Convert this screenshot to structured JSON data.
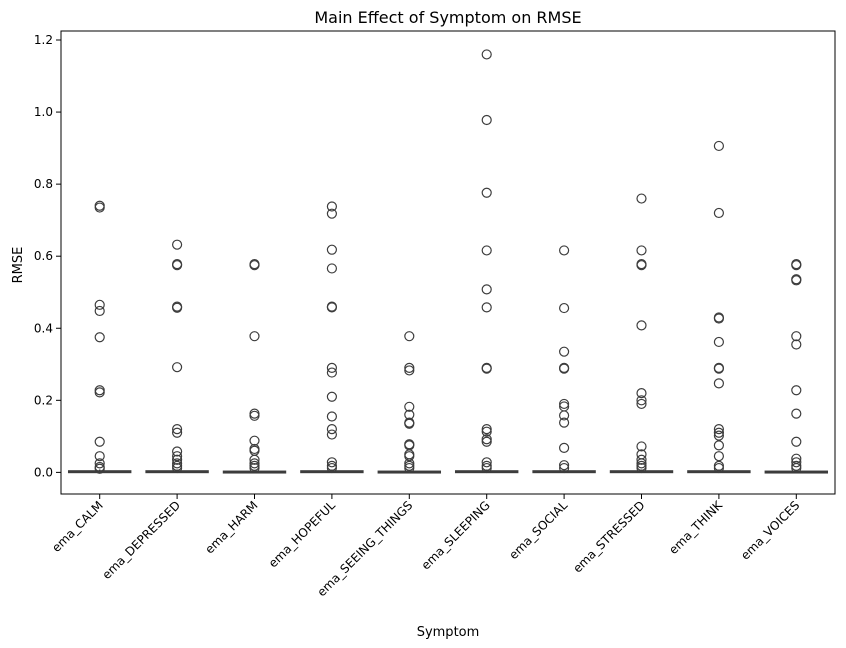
{
  "chart_data": {
    "type": "box",
    "title": "Main Effect of Symptom on RMSE",
    "xlabel": "Symptom",
    "ylabel": "RMSE",
    "ylim": [
      -0.06,
      1.225
    ],
    "yticks": [
      "0.0",
      "0.2",
      "0.4",
      "0.6",
      "0.8",
      "1.0",
      "1.2"
    ],
    "grid": false,
    "categories": [
      "ema_CALM",
      "ema_DEPRESSED",
      "ema_HARM",
      "ema_HOPEFUL",
      "ema_SEEING_THINGS",
      "ema_SLEEPING",
      "ema_SOCIAL",
      "ema_STRESSED",
      "ema_THINK",
      "ema_VOICES"
    ],
    "boxes": [
      {
        "median": 0.002,
        "q1": 0.0,
        "q3": 0.004,
        "whisker_low": 0.0,
        "whisker_high": 0.008,
        "outliers": [
          0.74,
          0.735,
          0.465,
          0.448,
          0.375,
          0.228,
          0.222,
          0.085,
          0.045,
          0.025,
          0.015,
          0.01
        ]
      },
      {
        "median": 0.002,
        "q1": 0.0,
        "q3": 0.004,
        "whisker_low": 0.0,
        "whisker_high": 0.008,
        "outliers": [
          0.632,
          0.578,
          0.575,
          0.46,
          0.457,
          0.292,
          0.12,
          0.11,
          0.058,
          0.045,
          0.035,
          0.025,
          0.018,
          0.012
        ]
      },
      {
        "median": 0.001,
        "q1": 0.0,
        "q3": 0.003,
        "whisker_low": 0.0,
        "whisker_high": 0.006,
        "outliers": [
          0.578,
          0.575,
          0.378,
          0.163,
          0.157,
          0.088,
          0.065,
          0.06,
          0.035,
          0.025,
          0.018,
          0.012
        ]
      },
      {
        "median": 0.002,
        "q1": 0.0,
        "q3": 0.004,
        "whisker_low": 0.0,
        "whisker_high": 0.008,
        "outliers": [
          0.738,
          0.718,
          0.618,
          0.566,
          0.46,
          0.458,
          0.29,
          0.277,
          0.21,
          0.155,
          0.12,
          0.105,
          0.028,
          0.018,
          0.012
        ]
      },
      {
        "median": 0.001,
        "q1": 0.0,
        "q3": 0.003,
        "whisker_low": 0.0,
        "whisker_high": 0.006,
        "outliers": [
          0.378,
          0.29,
          0.283,
          0.182,
          0.16,
          0.138,
          0.135,
          0.078,
          0.075,
          0.05,
          0.045,
          0.025,
          0.018,
          0.012
        ]
      },
      {
        "median": 0.002,
        "q1": 0.0,
        "q3": 0.004,
        "whisker_low": 0.0,
        "whisker_high": 0.008,
        "outliers": [
          1.16,
          0.978,
          0.776,
          0.616,
          0.508,
          0.458,
          0.29,
          0.288,
          0.12,
          0.113,
          0.092,
          0.085,
          0.028,
          0.018,
          0.012
        ]
      },
      {
        "median": 0.002,
        "q1": 0.0,
        "q3": 0.004,
        "whisker_low": 0.0,
        "whisker_high": 0.008,
        "outliers": [
          0.616,
          0.456,
          0.335,
          0.29,
          0.288,
          0.19,
          0.183,
          0.158,
          0.138,
          0.068,
          0.02,
          0.012
        ]
      },
      {
        "median": 0.002,
        "q1": 0.0,
        "q3": 0.004,
        "whisker_low": 0.0,
        "whisker_high": 0.008,
        "outliers": [
          0.76,
          0.616,
          0.578,
          0.575,
          0.408,
          0.22,
          0.2,
          0.19,
          0.072,
          0.05,
          0.035,
          0.025,
          0.018,
          0.012
        ]
      },
      {
        "median": 0.002,
        "q1": 0.0,
        "q3": 0.004,
        "whisker_low": 0.0,
        "whisker_high": 0.008,
        "outliers": [
          0.906,
          0.72,
          0.43,
          0.427,
          0.362,
          0.29,
          0.288,
          0.247,
          0.12,
          0.11,
          0.102,
          0.075,
          0.045,
          0.018,
          0.012
        ]
      },
      {
        "median": 0.001,
        "q1": 0.0,
        "q3": 0.003,
        "whisker_low": 0.0,
        "whisker_high": 0.006,
        "outliers": [
          0.578,
          0.575,
          0.536,
          0.533,
          0.378,
          0.355,
          0.228,
          0.163,
          0.085,
          0.038,
          0.028,
          0.018,
          0.012
        ]
      }
    ]
  }
}
